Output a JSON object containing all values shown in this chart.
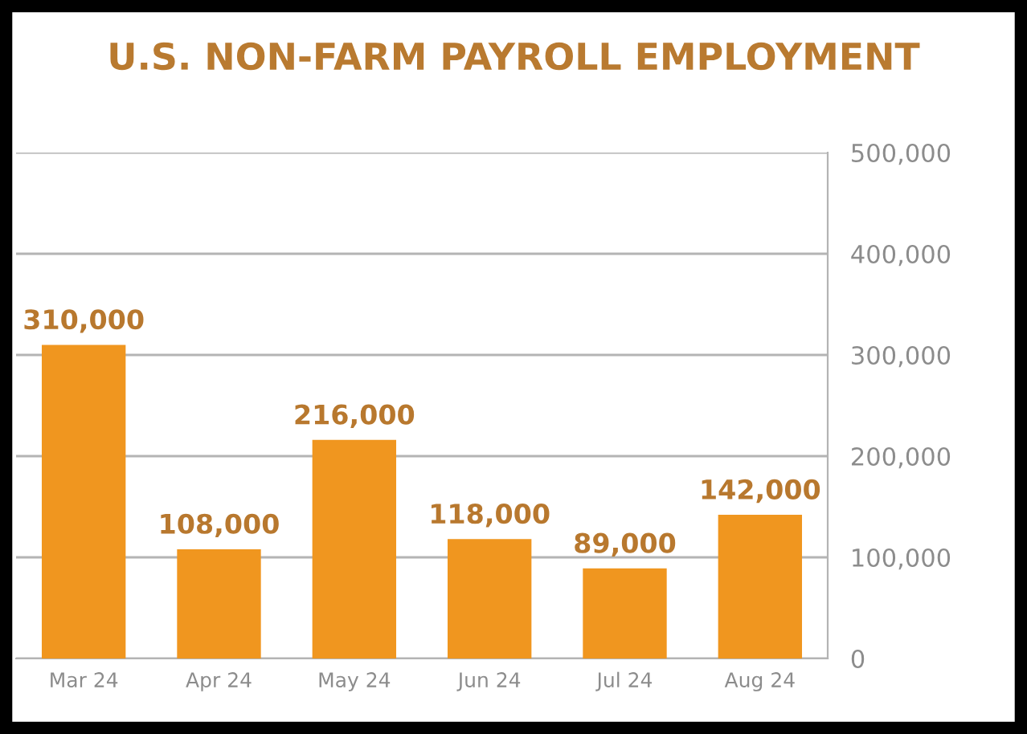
{
  "chart_data": {
    "type": "bar",
    "title": "U.S. NON-FARM PAYROLL EMPLOYMENT",
    "categories": [
      "Mar 24",
      "Apr 24",
      "May 24",
      "Jun 24",
      "Jul 24",
      "Aug 24"
    ],
    "values": [
      310000,
      108000,
      216000,
      118000,
      89000,
      142000
    ],
    "value_labels": [
      "310,000",
      "108,000",
      "216,000",
      "118,000",
      "89,000",
      "142,000"
    ],
    "color": "#f0961f",
    "ylim": [
      0,
      500000
    ],
    "yticks": [
      0,
      {
        "value": 100000,
        "label": "100,000"
      },
      {
        "value": 200000,
        "label": "200,000"
      },
      {
        "value": 300000,
        "label": "300,000"
      },
      {
        "value": 400000,
        "label": "400,000"
      },
      {
        "value": 500000,
        "label": "500,000"
      }
    ],
    "grid": "y"
  }
}
